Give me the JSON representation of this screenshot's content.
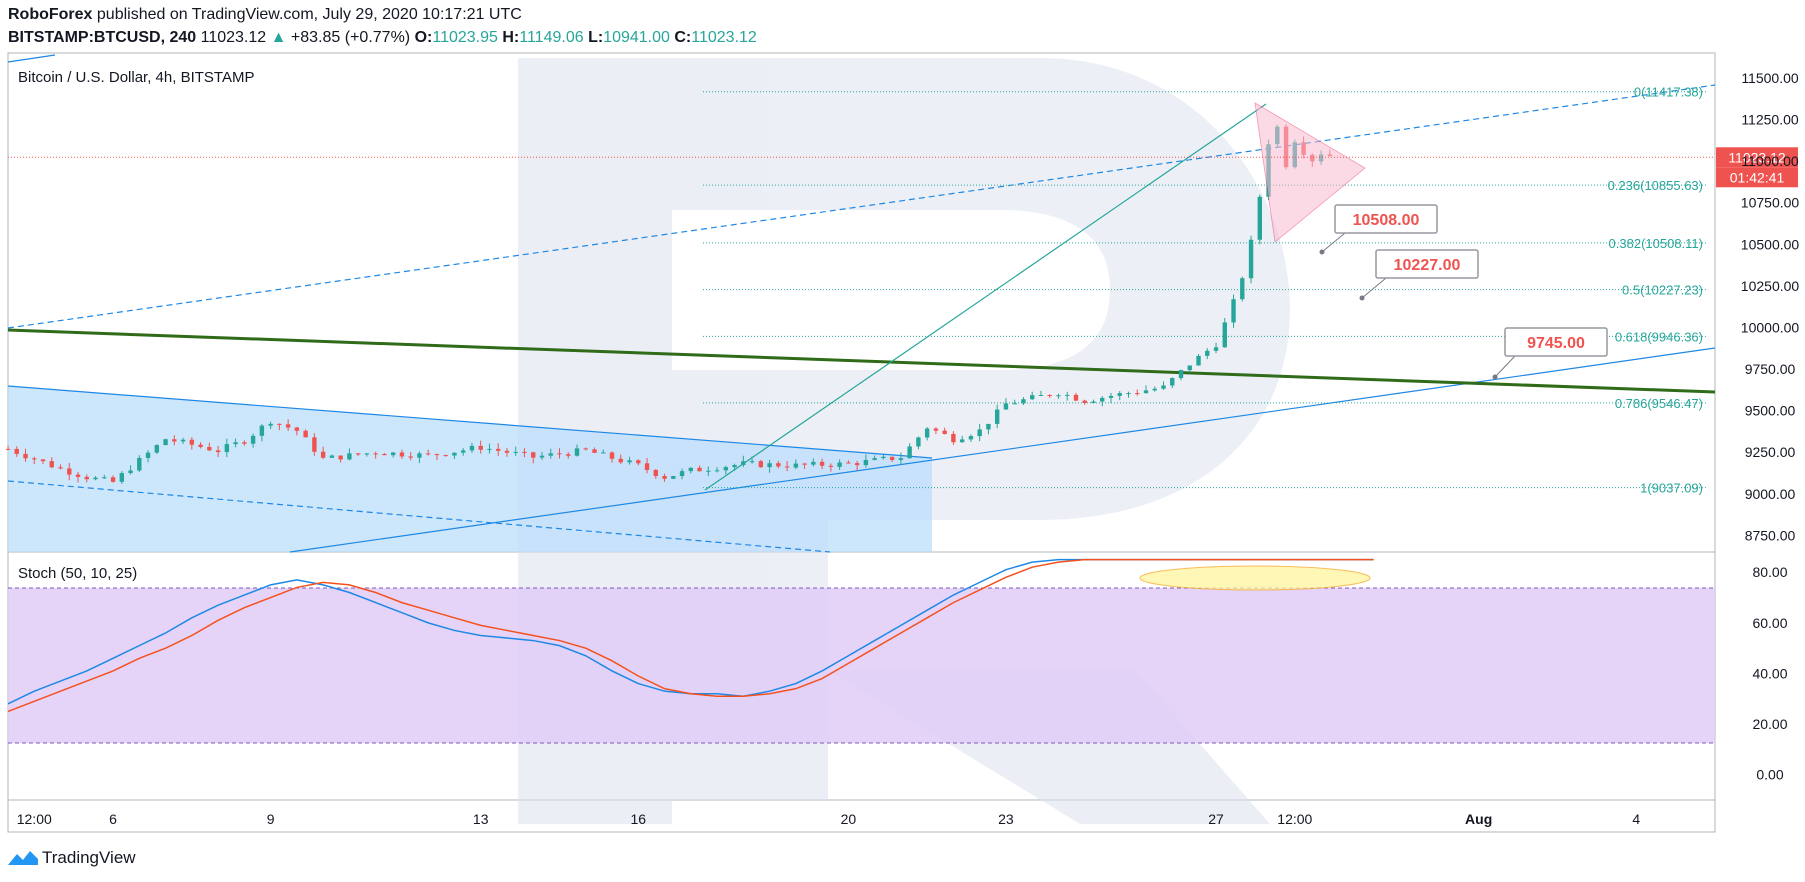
{
  "header": {
    "publisher": "RoboForex",
    "published_text": "published on TradingView.com, July 29, 2020 10:17:21 UTC",
    "symbol": "BITSTAMP:BTCUSD, 240",
    "last": "11023.12",
    "arrow": "▲",
    "change": "+83.85 (+0.77%)",
    "o_label": "O:",
    "o": "11023.95",
    "h_label": "H:",
    "h": "11149.06",
    "l_label": "L:",
    "l": "10941.00",
    "c_label": "C:",
    "c": "11023.12"
  },
  "footer": {
    "brand": "TradingView"
  },
  "chart_data": [
    {
      "type": "candlestick",
      "title": "Bitcoin / U.S. Dollar, 4h, BITSTAMP",
      "ylim": [
        8650,
        11650
      ],
      "y_ticks": [
        "11500.00",
        "11250.00",
        "11000.00",
        "10750.00",
        "10500.00",
        "10250.00",
        "10000.00",
        "9750.00",
        "9500.00",
        "9250.00",
        "9000.00",
        "8750.00"
      ],
      "y_tick_values": [
        11500,
        11250,
        11000,
        10750,
        10500,
        10250,
        10000,
        9750,
        9500,
        9250,
        9000,
        8750
      ],
      "x_ticks": [
        "12:00",
        "6",
        "9",
        "13",
        "16",
        "20",
        "23",
        "27",
        "12:00",
        "Aug",
        "4"
      ],
      "x_tick_days": [
        4.5,
        6,
        9,
        13,
        16,
        20,
        23,
        27,
        28.5,
        32,
        35
      ],
      "x_range_days": [
        4,
        36.5
      ],
      "price_label": "11023.12",
      "price_value": 11023.12,
      "countdown_label": "01:42:41",
      "fibonacci": [
        {
          "label": "0(11417.38)",
          "value": 11417.38
        },
        {
          "label": "0.236(10855.63)",
          "value": 10855.63
        },
        {
          "label": "0.382(10508.11)",
          "value": 10508.11
        },
        {
          "label": "0.5(10227.23)",
          "value": 10227.23
        },
        {
          "label": "0.618(9946.36)",
          "value": 9946.36
        },
        {
          "label": "0.786(9546.47)",
          "value": 9546.47
        },
        {
          "label": "1(9037.09)",
          "value": 9037.09
        }
      ],
      "targets": [
        {
          "label": "10508.00",
          "value": 10508.0
        },
        {
          "label": "10227.00",
          "value": 10227.0
        },
        {
          "label": "9745.00",
          "value": 9745.0
        }
      ],
      "colors": {
        "up": "#26a69a",
        "down": "#ef5350",
        "trend": "#2f6b18",
        "channel": "#1e88e5",
        "fib": "#26a69a",
        "price_line": "#ef5350"
      }
    },
    {
      "type": "line",
      "title": "Stoch (50, 10, 25)",
      "ylim": [
        -10,
        88
      ],
      "y_ticks": [
        "80.00",
        "60.00",
        "40.00",
        "20.00",
        "0.00"
      ],
      "y_tick_values": [
        80,
        60,
        40,
        20,
        0
      ],
      "levels": [
        80,
        20
      ],
      "series": [
        {
          "color": "#1e88e5",
          "x": [
            4,
            4.5,
            5,
            5.5,
            6,
            6.5,
            7,
            7.5,
            8,
            8.5,
            9,
            9.5,
            10,
            10.5,
            11,
            11.5,
            12,
            12.5,
            13,
            13.5,
            14,
            14.5,
            15,
            15.5,
            16,
            16.5,
            17,
            17.5,
            18,
            18.5,
            19,
            19.5,
            20,
            20.5,
            21,
            21.5,
            22,
            22.5,
            23,
            23.5,
            24,
            24.5,
            25,
            25.5,
            26,
            26.5,
            27,
            27.5,
            28,
            28.5,
            29,
            29.5,
            30
          ],
          "values": [
            28,
            33,
            37,
            41,
            46,
            51,
            56,
            62,
            67,
            71,
            75,
            77,
            75,
            72,
            68,
            64,
            60,
            57,
            55,
            54,
            53,
            51,
            47,
            41,
            36,
            33,
            32,
            32,
            31,
            33,
            36,
            41,
            47,
            53,
            59,
            65,
            71,
            76,
            81,
            84,
            85,
            85,
            85,
            85,
            85,
            85,
            85,
            85,
            85,
            85,
            85,
            85,
            85
          ]
        },
        {
          "color": "#f4511e",
          "x": [
            4,
            4.5,
            5,
            5.5,
            6,
            6.5,
            7,
            7.5,
            8,
            8.5,
            9,
            9.5,
            10,
            10.5,
            11,
            11.5,
            12,
            12.5,
            13,
            13.5,
            14,
            14.5,
            15,
            15.5,
            16,
            16.5,
            17,
            17.5,
            18,
            18.5,
            19,
            19.5,
            20,
            20.5,
            21,
            21.5,
            22,
            22.5,
            23,
            23.5,
            24,
            24.5,
            25,
            25.5,
            26,
            26.5,
            27,
            27.5,
            28,
            28.5,
            29,
            29.5,
            30
          ],
          "values": [
            25,
            29,
            33,
            37,
            41,
            46,
            50,
            55,
            61,
            66,
            70,
            74,
            76,
            75,
            72,
            68,
            65,
            62,
            59,
            57,
            55,
            53,
            50,
            45,
            39,
            34,
            32,
            31,
            31,
            32,
            34,
            38,
            44,
            50,
            56,
            62,
            68,
            73,
            78,
            82,
            84,
            85,
            85,
            85,
            85,
            85,
            85,
            85,
            85,
            85,
            85,
            85,
            85
          ]
        }
      ]
    }
  ]
}
